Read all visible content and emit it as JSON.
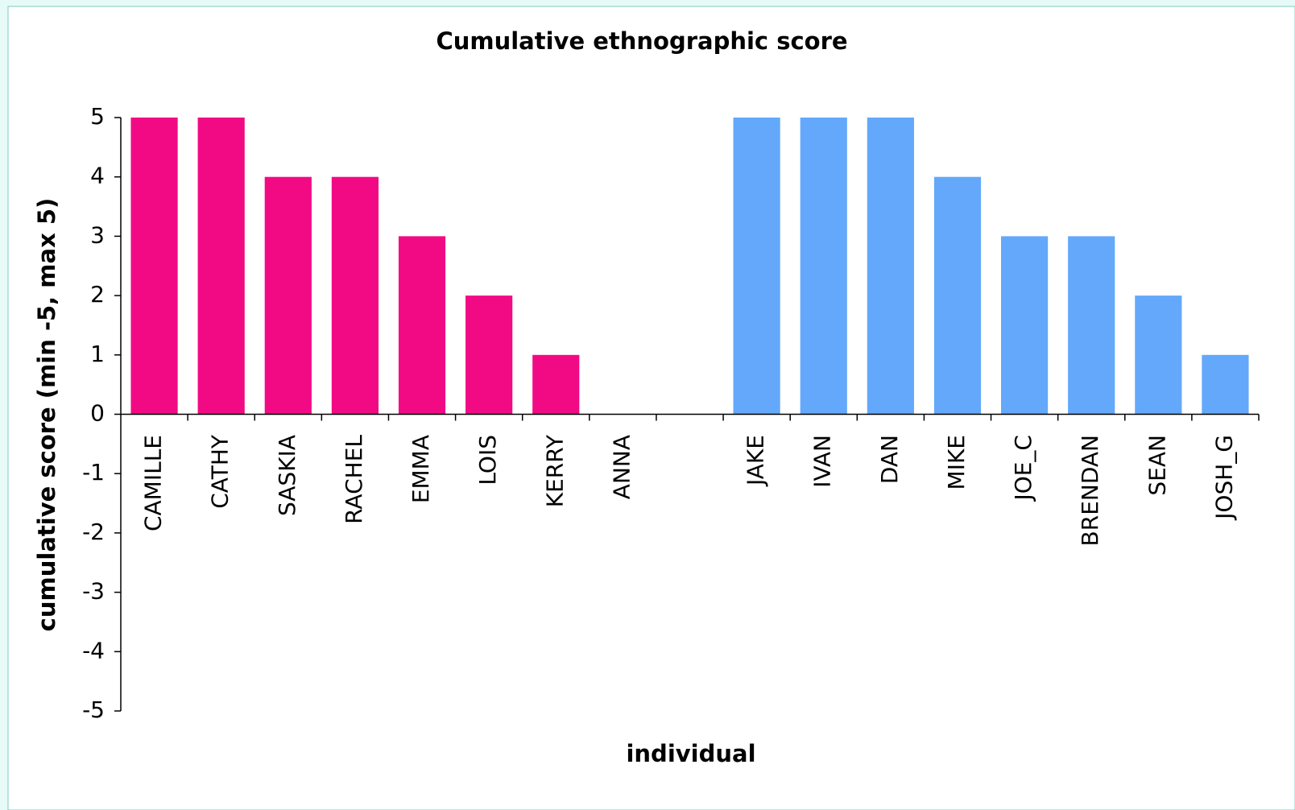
{
  "chart_data": {
    "type": "bar",
    "title": "Cumulative ethnographic score",
    "x_label": "individual",
    "y_label": "cumulative score (min -5, max 5)",
    "categories": [
      "CAMILLE",
      "CATHY",
      "SASKIA",
      "RACHEL",
      "EMMA",
      "LOIS",
      "KERRY",
      "ANNA",
      null,
      "JAKE",
      "IVAN",
      "DAN",
      "MIKE",
      "JOE_C",
      "BRENDAN",
      "SEAN",
      "JOSH_G"
    ],
    "values": [
      5,
      5,
      4,
      4,
      3,
      2,
      1,
      0,
      null,
      5,
      5,
      5,
      4,
      3,
      3,
      2,
      1
    ],
    "colors": [
      "#f20a85",
      "#f20a85",
      "#f20a85",
      "#f20a85",
      "#f20a85",
      "#f20a85",
      "#f20a85",
      "#f20a85",
      null,
      "#63a8fb",
      "#63a8fb",
      "#63a8fb",
      "#63a8fb",
      "#63a8fb",
      "#63a8fb",
      "#63a8fb",
      "#63a8fb"
    ],
    "ylim": [
      -5,
      5
    ],
    "yticks": [
      -5,
      -4,
      -3,
      -2,
      -1,
      0,
      1,
      2,
      3,
      4,
      5
    ],
    "grid": false
  }
}
